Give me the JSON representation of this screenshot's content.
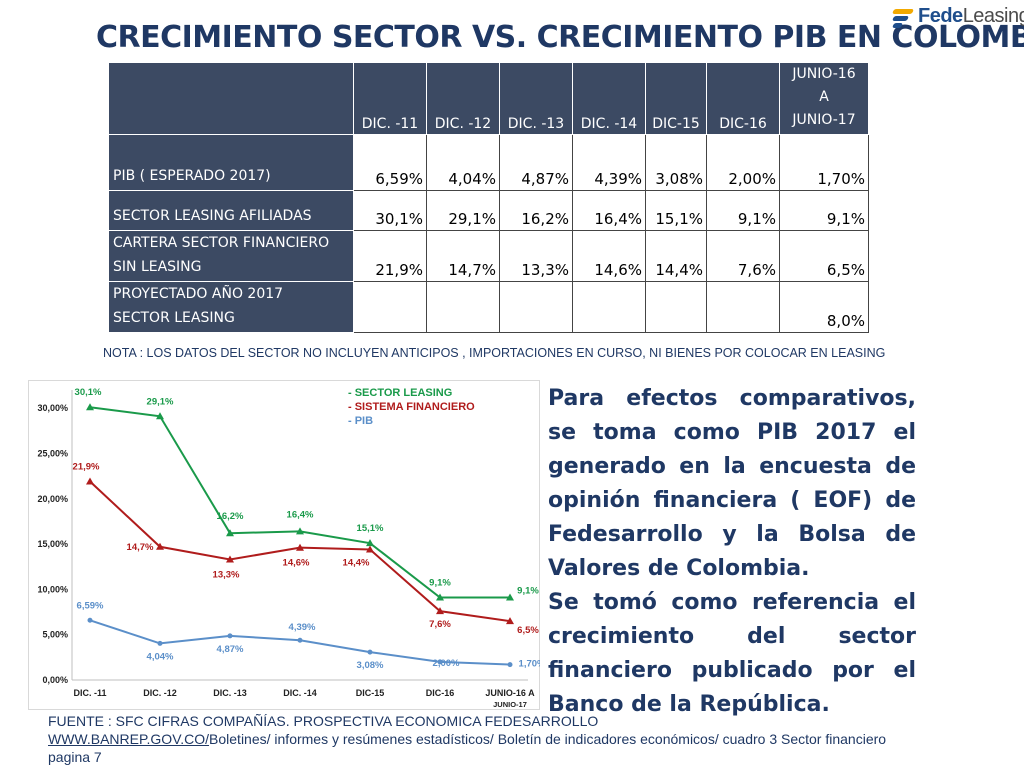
{
  "title": "CRECIMIENTO SECTOR VS. CRECIMIENTO PIB EN COLOMBIA",
  "logo": {
    "part1": "Fede",
    "part2": "Leasing"
  },
  "table": {
    "headers": [
      "DIC. -11",
      "DIC. -12",
      "DIC. -13",
      "DIC. -14",
      "DIC-15",
      "DIC-16"
    ],
    "last_header": {
      "line1": "JUNIO-16",
      "line2": "A",
      "line3": "JUNIO-17"
    },
    "rows": [
      {
        "label": "PIB ( ESPERADO 2017)",
        "values": [
          "6,59%",
          "4,04%",
          "4,87%",
          "4,39%",
          "3,08%",
          "2,00%",
          "1,70%"
        ]
      },
      {
        "label": "SECTOR LEASING AFILIADAS",
        "values": [
          "30,1%",
          "29,1%",
          "16,2%",
          "16,4%",
          "15,1%",
          "9,1%",
          "9,1%"
        ]
      },
      {
        "label_line1": "CARTERA SECTOR FINANCIERO",
        "label_line2": "SIN LEASING",
        "values": [
          "21,9%",
          "14,7%",
          "13,3%",
          "14,6%",
          "14,4%",
          "7,6%",
          "6,5%"
        ]
      },
      {
        "label_line1": "PROYECTADO AÑO 2017",
        "label_line2": "SECTOR LEASING",
        "values": [
          "",
          "",
          "",
          "",
          "",
          "",
          "8,0%"
        ]
      }
    ]
  },
  "note": "NOTA : LOS DATOS DEL SECTOR NO INCLUYEN ANTICIPOS , IMPORTACIONES EN CURSO, NI BIENES POR COLOCAR EN LEASING",
  "chart_data": {
    "type": "line",
    "categories": [
      "DIC. -11",
      "DIC. -12",
      "DIC. -13",
      "DIC. -14",
      "DIC-15",
      "DIC-16",
      "JUNIO-16 A\nJUNIO-17"
    ],
    "ylim": [
      0,
      32
    ],
    "yticks": [
      "0,00%",
      "5,00%",
      "10,00%",
      "15,00%",
      "20,00%",
      "25,00%",
      "30,00%"
    ],
    "legend": [
      "- SECTOR LEASING",
      "- SISTEMA FINANCIERO",
      "- PIB"
    ],
    "legend_placement": "top-right",
    "series": [
      {
        "name": "- SECTOR LEASING",
        "color": "#1a9a4a",
        "marker": "triangle",
        "values": [
          30.1,
          29.1,
          16.2,
          16.4,
          15.1,
          9.1,
          9.1
        ],
        "labels": [
          "30,1%",
          "29,1%",
          "16,2%",
          "16,4%",
          "15,1%",
          "9,1%",
          "9,1%"
        ]
      },
      {
        "name": "- SISTEMA FINANCIERO",
        "color": "#b01c1c",
        "marker": "triangle",
        "values": [
          21.9,
          14.7,
          13.3,
          14.6,
          14.4,
          7.6,
          6.5
        ],
        "labels": [
          "21,9%",
          "14,7%",
          "13,3%",
          "14,6%",
          "14,4%",
          "7,6%",
          "6,5%"
        ]
      },
      {
        "name": "- PIB",
        "color": "#5b8fc9",
        "marker": "circle",
        "values": [
          6.59,
          4.04,
          4.87,
          4.39,
          3.08,
          2.0,
          1.7
        ],
        "labels": [
          "6,59%",
          "4,04%",
          "4,87%",
          "4,39%",
          "3,08%",
          "2,00%",
          "1,70%"
        ]
      }
    ]
  },
  "paragraph": {
    "p1": "Para efectos comparativos, se toma como PIB 2017 el generado en la encuesta de opinión financiera ( EOF) de Fedesarrollo y la Bolsa de Valores de Colombia.",
    "p2": "Se tomó como referencia el crecimiento del sector financiero publicado por el Banco de la República."
  },
  "source": {
    "line1": "FUENTE : SFC CIFRAS COMPAÑÍAS. PROSPECTIVA ECONOMICA FEDESARROLLO",
    "link": "WWW.BANREP.GOV.CO/",
    "line2_rest": "Boletines/ informes y resúmenes estadísticos/ Boletín de indicadores económicos/ cuadro 3 Sector financiero",
    "line3": "pagina 7"
  }
}
